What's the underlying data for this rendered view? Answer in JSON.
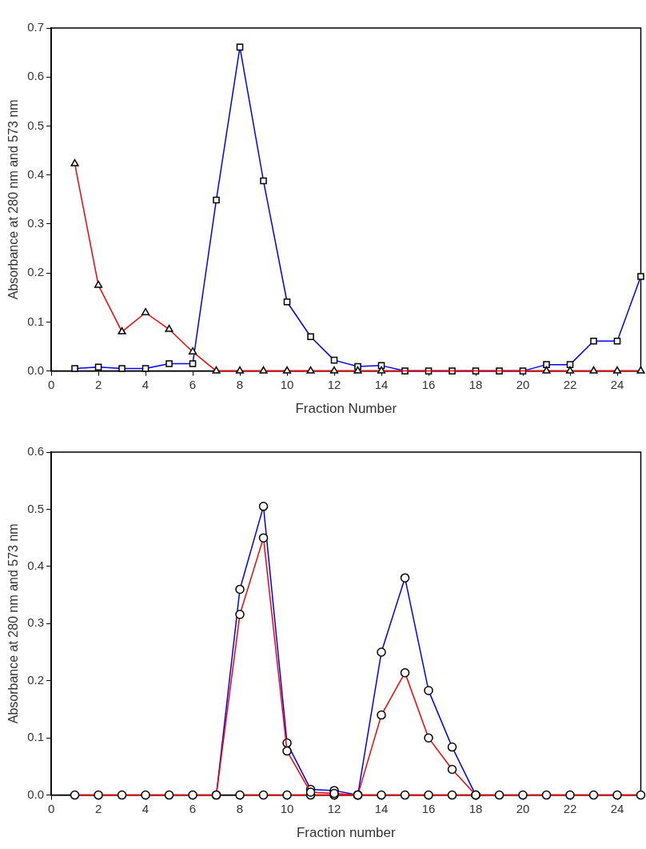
{
  "chart_data": [
    {
      "type": "line",
      "xlabel": "Fraction Number",
      "ylabel": "Absorbance at 280 nm and 573 nm",
      "x": [
        1,
        2,
        3,
        4,
        5,
        6,
        7,
        8,
        9,
        10,
        11,
        12,
        13,
        14,
        15,
        16,
        17,
        18,
        19,
        20,
        21,
        22,
        23,
        24,
        25
      ],
      "series": [
        {
          "color": "#0000ff",
          "marker": "square",
          "values": [
            0.005,
            0.008,
            0.005,
            0.005,
            0.015,
            0.015,
            0.349,
            0.661,
            0.388,
            0.141,
            0.07,
            0.022,
            0.009,
            0.011,
            0,
            0,
            0,
            0,
            0,
            0,
            0.013,
            0.013,
            0.061,
            0.061,
            0.193
          ]
        },
        {
          "color": "#ff0000",
          "marker": "triangle",
          "values": [
            0.423,
            0.175,
            0.08,
            0.119,
            0.085,
            0.039,
            0,
            0,
            0,
            0,
            0,
            0,
            0,
            0,
            null,
            null,
            null,
            null,
            null,
            null,
            0,
            0,
            0,
            0,
            0
          ]
        }
      ],
      "xlim": [
        0,
        25
      ],
      "xticks": [
        0,
        2,
        4,
        6,
        8,
        10,
        12,
        14,
        16,
        18,
        20,
        22,
        24
      ],
      "ylim": [
        0,
        0.7
      ],
      "yticks": [
        {
          "value": 0,
          "label": "0.0"
        },
        0.1,
        0.2,
        0.3,
        0.4,
        0.5,
        0.6,
        0.7
      ]
    },
    {
      "type": "line",
      "xlabel": "Fraction number",
      "ylabel": "Absorbance at 280 nm and 573 nm",
      "marker": "circle",
      "x": [
        1,
        2,
        3,
        4,
        5,
        6,
        7,
        8,
        9,
        10,
        11,
        12,
        13,
        14,
        15,
        16,
        17,
        18,
        19,
        20,
        21,
        22,
        23,
        24,
        25
      ],
      "series": [
        {
          "color": "#0000ff",
          "x": [
            7,
            8,
            9,
            10,
            11,
            12,
            13
          ],
          "values": [
            0,
            0.36,
            0.505,
            0.091,
            0.01,
            0.008,
            0
          ]
        },
        {
          "color": "#0000ff",
          "x": [
            13,
            14,
            15,
            16,
            17,
            18
          ],
          "values": [
            0,
            0.25,
            0.38,
            0.183,
            0.084,
            0
          ]
        },
        {
          "color": "#ff0000",
          "x": [
            8,
            9,
            10,
            11,
            12,
            13,
            14,
            15,
            16,
            17,
            18
          ],
          "values": [
            0,
            0,
            0,
            0,
            0,
            0,
            0.14,
            0.214,
            0.1,
            0.045,
            0
          ]
        },
        {
          "color": "#ff0000",
          "values": [
            0,
            0,
            0,
            0,
            0,
            0,
            0,
            0.316,
            0.45,
            0.077,
            0.005,
            0.003,
            0,
            0,
            0,
            0,
            0,
            0,
            0,
            0,
            0,
            0,
            0,
            0,
            0
          ]
        }
      ],
      "xlim": [
        0,
        25
      ],
      "xticks": [
        0,
        2,
        4,
        6,
        8,
        10,
        12,
        14,
        16,
        18,
        20,
        22,
        24
      ],
      "ylim": [
        0,
        0.6
      ],
      "yticks": [
        {
          "value": 0,
          "label": "0.0"
        },
        0.1,
        0.2,
        0.3,
        0.4,
        0.5,
        0.6
      ]
    }
  ]
}
